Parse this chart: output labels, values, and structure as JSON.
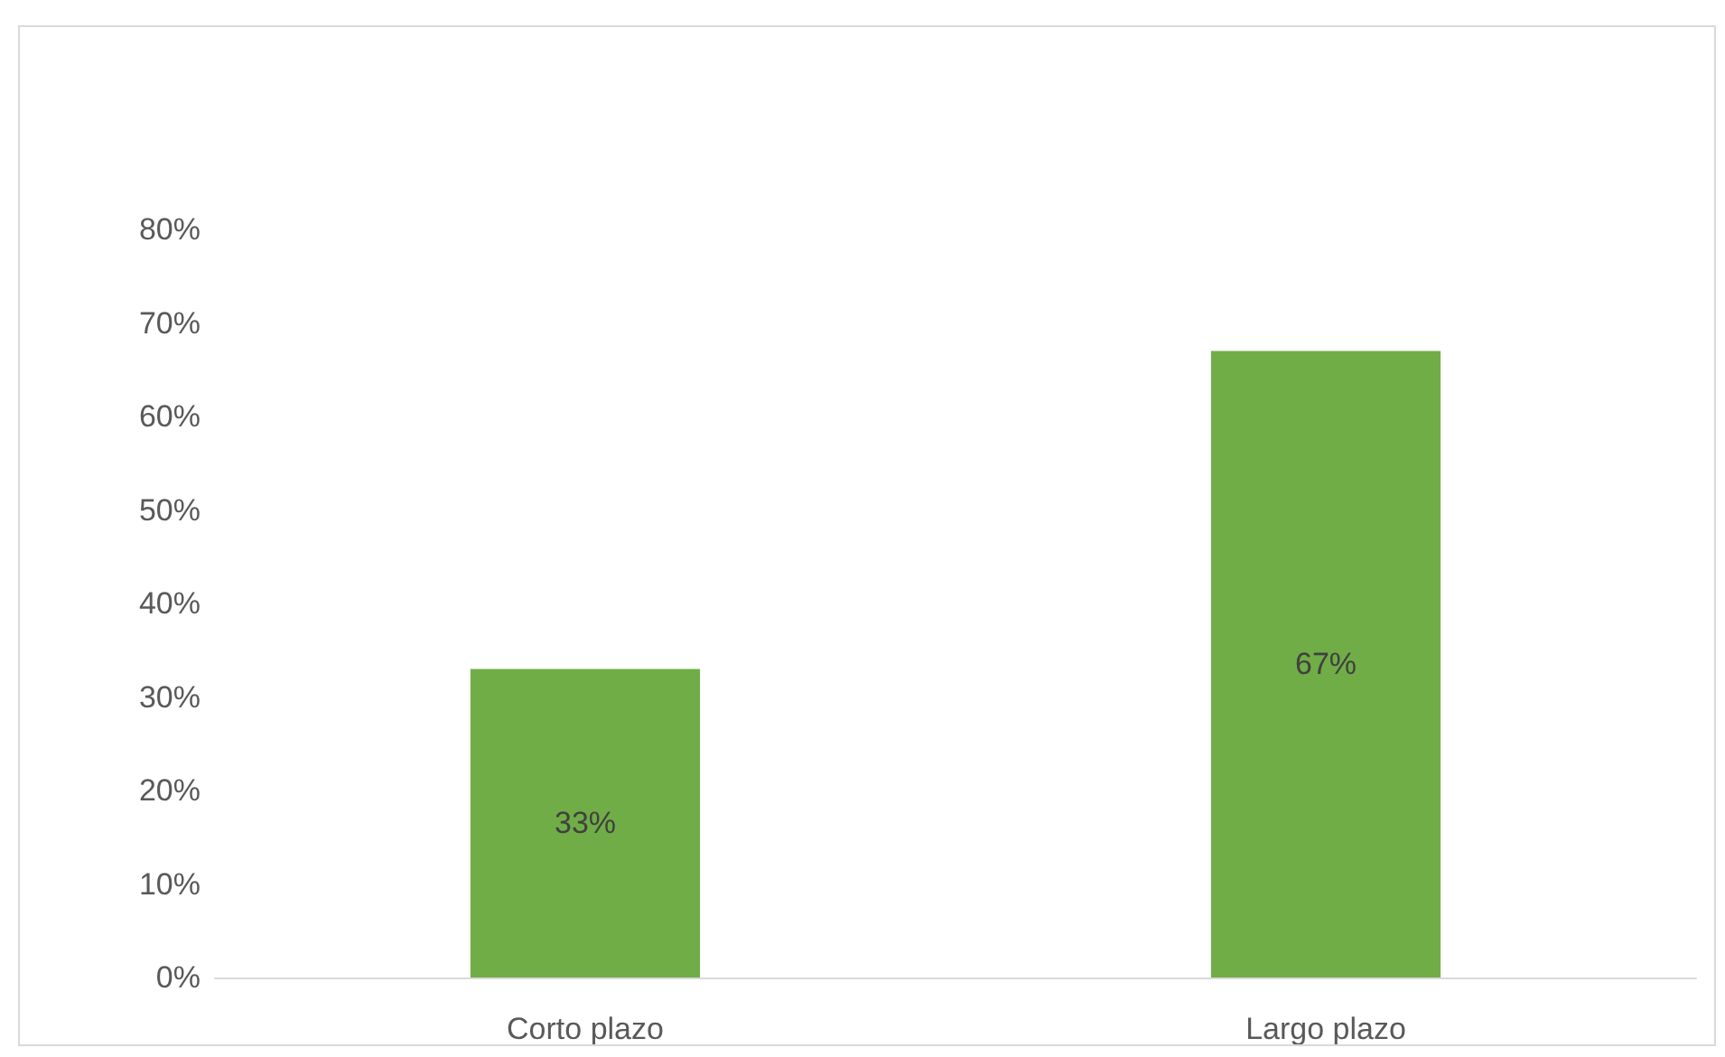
{
  "chart_data": {
    "type": "bar",
    "categories": [
      "Corto plazo",
      "Largo plazo"
    ],
    "values": [
      33,
      67
    ],
    "value_labels": [
      "33%",
      "67%"
    ],
    "color": "#70ad47",
    "ylim": [
      0,
      80
    ],
    "yticks": [
      {
        "value": 0,
        "label": "0%"
      },
      {
        "value": 10,
        "label": "10%"
      },
      {
        "value": 20,
        "label": "20%"
      },
      {
        "value": 30,
        "label": "30%"
      },
      {
        "value": 40,
        "label": "40%"
      },
      {
        "value": 50,
        "label": "50%"
      },
      {
        "value": 60,
        "label": "60%"
      },
      {
        "value": 70,
        "label": "70%"
      },
      {
        "value": 80,
        "label": "80%"
      }
    ],
    "data_labels": false
  }
}
